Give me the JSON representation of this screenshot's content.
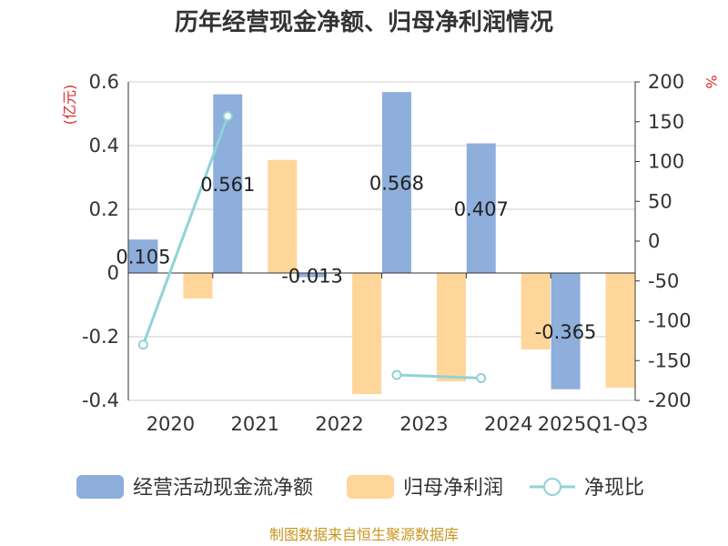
{
  "chart_data": {
    "type": "bar",
    "title": "历年经营现金净额、归母净利润情况",
    "categories": [
      "2020",
      "2021",
      "2022",
      "2023",
      "2024",
      "2025Q1-Q3"
    ],
    "series": [
      {
        "name": "经营活动现金流净额",
        "axis": "left",
        "type": "bar",
        "color": "#8eaedb",
        "values": [
          0.105,
          0.561,
          -0.013,
          0.568,
          0.407,
          -0.365
        ]
      },
      {
        "name": "归母净利润",
        "axis": "left",
        "type": "bar",
        "color": "#ffd699",
        "values": [
          -0.08,
          0.355,
          -0.38,
          -0.34,
          -0.24,
          -0.36
        ]
      },
      {
        "name": "净现比",
        "axis": "right",
        "type": "line",
        "color": "#8fd3d8",
        "values": [
          -130,
          157,
          null,
          -168,
          -172,
          null
        ]
      }
    ],
    "data_labels": [
      "0.105",
      "0.561",
      "-0.013",
      "0.568",
      "0.407",
      "-0.365"
    ],
    "y_left": {
      "unit": "(亿元)",
      "ylim": [
        -0.4,
        0.6
      ],
      "ticks": [
        "-0.4",
        "-0.2",
        "0",
        "0.2",
        "0.4",
        "0.6"
      ],
      "tick_values": [
        -0.4,
        -0.2,
        0,
        0.2,
        0.4,
        0.6
      ]
    },
    "y_right": {
      "unit": "%",
      "ylim": [
        -200,
        200
      ],
      "ticks": [
        "-200",
        "-150",
        "-100",
        "-50",
        "0",
        "50",
        "100",
        "150",
        "200"
      ],
      "tick_values": [
        -200,
        -150,
        -100,
        -50,
        0,
        50,
        100,
        150,
        200
      ]
    },
    "grid": true,
    "legend_position": "bottom"
  },
  "source": "制图数据来自恒生聚源数据库"
}
